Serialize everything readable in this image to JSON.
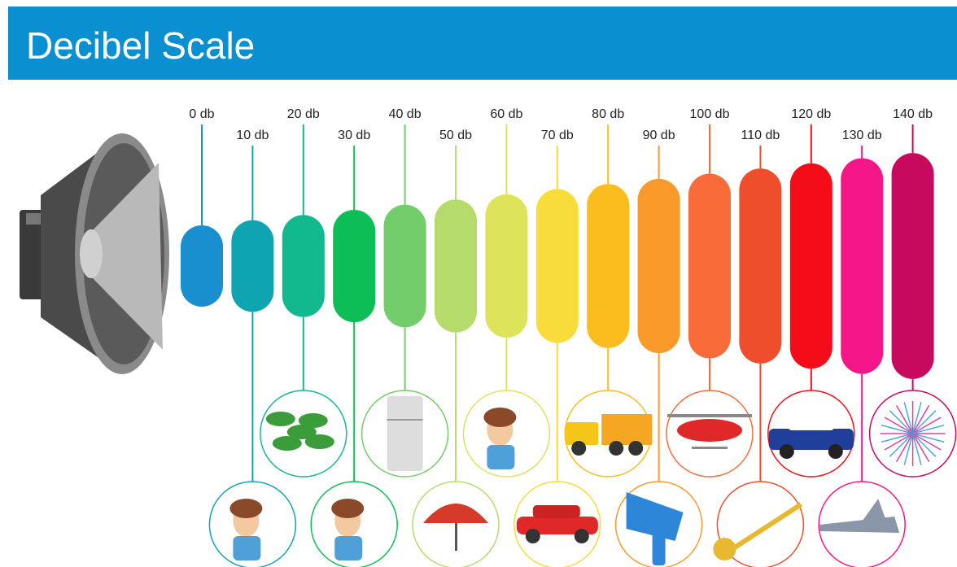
{
  "header": {
    "title": "Decibel Scale"
  },
  "levels": [
    {
      "label": "0 db",
      "color": "#1a8fd0"
    },
    {
      "label": "10 db",
      "color": "#0fa5b0"
    },
    {
      "label": "20 db",
      "color": "#12b98e"
    },
    {
      "label": "30 db",
      "color": "#0cbe55"
    },
    {
      "label": "40 db",
      "color": "#72cd6a"
    },
    {
      "label": "50 db",
      "color": "#b5dc6a"
    },
    {
      "label": "60 db",
      "color": "#dde45a"
    },
    {
      "label": "70 db",
      "color": "#f7dc3a"
    },
    {
      "label": "80 db",
      "color": "#fbbd1e"
    },
    {
      "label": "90 db",
      "color": "#f99a2a"
    },
    {
      "label": "100 db",
      "color": "#f96b38"
    },
    {
      "label": "110 db",
      "color": "#ef4e2c"
    },
    {
      "label": "120 db",
      "color": "#f40d18"
    },
    {
      "label": "130 db",
      "color": "#f5178a"
    },
    {
      "label": "140 db",
      "color": "#c80a5f"
    }
  ]
}
